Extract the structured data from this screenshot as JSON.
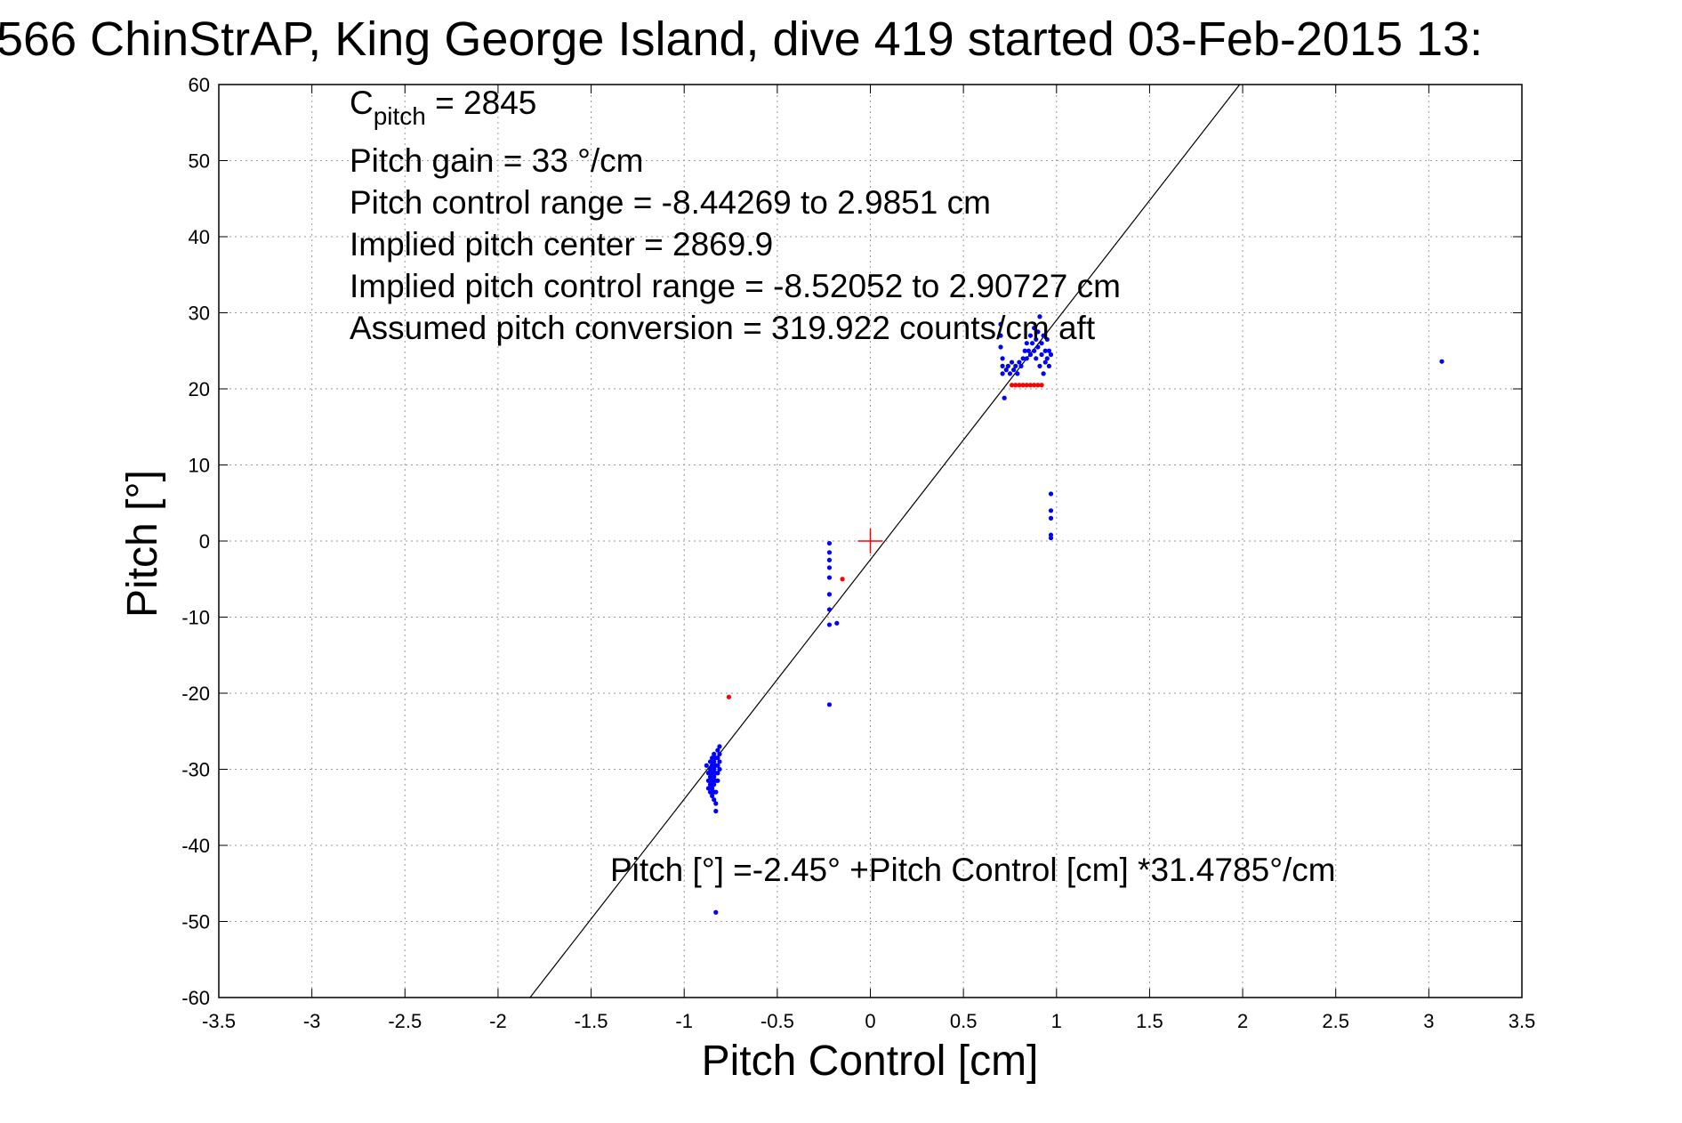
{
  "chart_data": {
    "type": "scatter",
    "title": "566 ChinStrAP, King George Island, dive 419 started 03-Feb-2015 13:",
    "xlabel": "Pitch Control [cm]",
    "ylabel": "Pitch [°]",
    "xlim": [
      -3.5,
      3.5
    ],
    "ylim": [
      -60,
      60
    ],
    "xticks": [
      -3.5,
      -3,
      -2.5,
      -2,
      -1.5,
      -1,
      -0.5,
      0,
      0.5,
      1,
      1.5,
      2,
      2.5,
      3,
      3.5
    ],
    "yticks": [
      -60,
      -50,
      -40,
      -30,
      -20,
      -10,
      0,
      10,
      20,
      30,
      40,
      50,
      60
    ],
    "xtick_labels": [
      "-3.5",
      "-3",
      "-2.5",
      "-2",
      "-1.5",
      "-1",
      "-0.5",
      "0",
      "0.5",
      "1",
      "1.5",
      "2",
      "2.5",
      "3",
      "3.5"
    ],
    "ytick_labels": [
      "-60",
      "-50",
      "-40",
      "-30",
      "-20",
      "-10",
      "0",
      "10",
      "20",
      "30",
      "40",
      "50",
      "60"
    ],
    "grid": true,
    "fit_line": {
      "intercept": -2.45,
      "slope": 31.4785,
      "color": "#000000"
    },
    "center_marker": {
      "x": 0,
      "y": 0,
      "color": "#ff0000"
    },
    "annotation": {
      "c_pitch_symbol": "C",
      "c_pitch_subscript": "pitch",
      "c_pitch_value": " = 2845",
      "pitch_gain": "Pitch gain = 33 °/cm",
      "control_range": "Pitch control range = -8.44269 to 2.9851 cm",
      "implied_center": "Implied pitch center = 2869.9",
      "implied_range": "Implied pitch control range = -8.52052 to 2.90727 cm",
      "conversion": "Assumed pitch conversion = 319.922 counts/cm aft"
    },
    "fit_equation": "Pitch [°] =-2.45° +Pitch Control [cm] *31.4785°/cm",
    "series": [
      {
        "color": "#0000ff",
        "points": [
          [
            -0.88,
            -29.5
          ],
          [
            -0.87,
            -30.5
          ],
          [
            -0.87,
            -31.5
          ],
          [
            -0.87,
            -32.5
          ],
          [
            -0.86,
            -29.0
          ],
          [
            -0.86,
            -30.0
          ],
          [
            -0.86,
            -31.0
          ],
          [
            -0.86,
            -32.0
          ],
          [
            -0.86,
            -33.0
          ],
          [
            -0.85,
            -28.5
          ],
          [
            -0.85,
            -29.5
          ],
          [
            -0.85,
            -30.5
          ],
          [
            -0.85,
            -31.5
          ],
          [
            -0.85,
            -32.5
          ],
          [
            -0.85,
            -33.5
          ],
          [
            -0.84,
            -28.0
          ],
          [
            -0.84,
            -29.0
          ],
          [
            -0.84,
            -30.0
          ],
          [
            -0.84,
            -31.0
          ],
          [
            -0.84,
            -32.0
          ],
          [
            -0.84,
            -33.0
          ],
          [
            -0.84,
            -34.0
          ],
          [
            -0.83,
            -28.5
          ],
          [
            -0.83,
            -29.5
          ],
          [
            -0.83,
            -30.5
          ],
          [
            -0.83,
            -31.5
          ],
          [
            -0.83,
            -33.0
          ],
          [
            -0.83,
            -34.5
          ],
          [
            -0.83,
            -35.5
          ],
          [
            -0.82,
            -27.5
          ],
          [
            -0.82,
            -28.5
          ],
          [
            -0.82,
            -29.5
          ],
          [
            -0.82,
            -30.5
          ],
          [
            -0.82,
            -31.5
          ],
          [
            -0.81,
            -27.0
          ],
          [
            -0.81,
            -28.0
          ],
          [
            -0.81,
            -29.0
          ],
          [
            -0.81,
            -30.0
          ],
          [
            -0.83,
            -48.8
          ],
          [
            -0.22,
            -0.3
          ],
          [
            -0.22,
            -1.5
          ],
          [
            -0.22,
            -2.5
          ],
          [
            -0.22,
            -3.5
          ],
          [
            -0.22,
            -4.8
          ],
          [
            -0.22,
            -7.0
          ],
          [
            -0.22,
            -9.0
          ],
          [
            -0.22,
            -11.0
          ],
          [
            -0.18,
            -10.8
          ],
          [
            -0.22,
            -21.5
          ],
          [
            0.7,
            28.5
          ],
          [
            0.7,
            27.0
          ],
          [
            0.7,
            25.5
          ],
          [
            0.71,
            24.0
          ],
          [
            0.71,
            23.0
          ],
          [
            0.71,
            22.0
          ],
          [
            0.72,
            18.8
          ],
          [
            0.73,
            22.5
          ],
          [
            0.74,
            23.0
          ],
          [
            0.75,
            22.0
          ],
          [
            0.76,
            23.5
          ],
          [
            0.77,
            22.5
          ],
          [
            0.78,
            23.0
          ],
          [
            0.79,
            22.0
          ],
          [
            0.8,
            23.5
          ],
          [
            0.81,
            23.0
          ],
          [
            0.82,
            24.0
          ],
          [
            0.83,
            25.0
          ],
          [
            0.84,
            24.0
          ],
          [
            0.84,
            26.0
          ],
          [
            0.85,
            25.0
          ],
          [
            0.86,
            27.0
          ],
          [
            0.86,
            24.5
          ],
          [
            0.87,
            26.0
          ],
          [
            0.88,
            25.0
          ],
          [
            0.88,
            28.0
          ],
          [
            0.89,
            24.0
          ],
          [
            0.89,
            26.5
          ],
          [
            0.9,
            27.5
          ],
          [
            0.9,
            25.5
          ],
          [
            0.91,
            29.5
          ],
          [
            0.91,
            23.0
          ],
          [
            0.92,
            26.0
          ],
          [
            0.92,
            24.5
          ],
          [
            0.93,
            27.0
          ],
          [
            0.93,
            22.0
          ],
          [
            0.94,
            25.0
          ],
          [
            0.94,
            23.5
          ],
          [
            0.95,
            26.5
          ],
          [
            0.95,
            24.0
          ],
          [
            0.96,
            25.0
          ],
          [
            0.96,
            23.0
          ],
          [
            0.97,
            24.5
          ],
          [
            0.97,
            6.2
          ],
          [
            0.97,
            4.0
          ],
          [
            0.97,
            3.0
          ],
          [
            0.97,
            0.8
          ],
          [
            0.97,
            0.4
          ],
          [
            3.07,
            23.6
          ]
        ]
      },
      {
        "color": "#ff0000",
        "points": [
          [
            -0.76,
            -20.5
          ],
          [
            -0.15,
            -5.0
          ],
          [
            0.76,
            20.5
          ],
          [
            0.78,
            20.5
          ],
          [
            0.8,
            20.5
          ],
          [
            0.82,
            20.5
          ],
          [
            0.84,
            20.5
          ],
          [
            0.86,
            20.5
          ],
          [
            0.88,
            20.5
          ],
          [
            0.9,
            20.5
          ],
          [
            0.92,
            20.5
          ]
        ]
      }
    ]
  }
}
